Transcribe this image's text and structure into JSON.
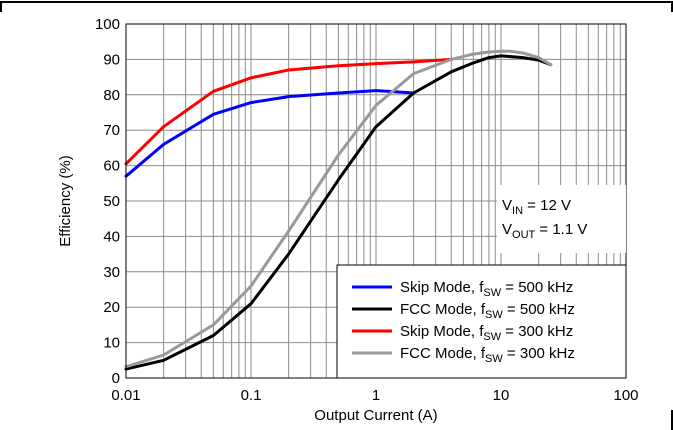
{
  "chart_data": {
    "type": "line",
    "xlabel": "Output Current (A)",
    "ylabel": "Efficiency (%)",
    "xscale": "log",
    "xlim": [
      0.01,
      100
    ],
    "ylim": [
      0,
      100
    ],
    "grid": true,
    "legend_position": "bottom-right",
    "xticks": [
      {
        "value": 0.01,
        "label": "0.01"
      },
      {
        "value": 0.1,
        "label": "0.1"
      },
      {
        "value": 1,
        "label": "1"
      },
      {
        "value": 10,
        "label": "10"
      },
      {
        "value": 100,
        "label": "100"
      }
    ],
    "yticks": [
      0,
      10,
      20,
      30,
      40,
      50,
      60,
      70,
      80,
      90,
      100
    ],
    "annotation": {
      "line1": {
        "main": "V",
        "sub": "IN",
        "rest": " = 12 V"
      },
      "line2": {
        "main": "V",
        "sub": "OUT",
        "rest": " = 1.1 V"
      }
    },
    "series": [
      {
        "legend": {
          "main": "Skip Mode, f",
          "sub": "SW",
          "rest": " = 500 kHz"
        },
        "color": "#0000ff",
        "x": [
          0.01,
          0.02,
          0.05,
          0.1,
          0.2,
          0.5,
          1,
          2
        ],
        "y": [
          57,
          66,
          74.5,
          77.8,
          79.5,
          80.5,
          81.2,
          80.5
        ]
      },
      {
        "legend": {
          "main": "FCC Mode, f",
          "sub": "SW",
          "rest": " = 500 kHz"
        },
        "color": "#000000",
        "x": [
          0.01,
          0.02,
          0.05,
          0.1,
          0.2,
          0.5,
          1,
          2,
          4,
          6,
          8,
          10,
          15,
          20,
          25
        ],
        "y": [
          2.5,
          5,
          12,
          21,
          35,
          56,
          71,
          80.5,
          86.5,
          89,
          90.5,
          91,
          90.5,
          89.8,
          88.5
        ]
      },
      {
        "legend": {
          "main": "Skip Mode, f",
          "sub": "SW",
          "rest": " = 300 kHz"
        },
        "color": "#ff0000",
        "x": [
          0.01,
          0.02,
          0.05,
          0.1,
          0.2,
          0.5,
          1,
          2,
          4
        ],
        "y": [
          60.5,
          71,
          81,
          84.8,
          87,
          88.2,
          88.8,
          89.3,
          90
        ]
      },
      {
        "legend": {
          "main": "FCC Mode, f",
          "sub": "SW",
          "rest": " = 300 kHz"
        },
        "color": "#999999",
        "x": [
          0.01,
          0.02,
          0.05,
          0.1,
          0.2,
          0.5,
          1,
          2,
          4,
          6,
          8,
          10,
          12,
          15,
          20,
          25
        ],
        "y": [
          3.2,
          6.5,
          15,
          26,
          41.5,
          63,
          77,
          86,
          90,
          91.5,
          92.1,
          92.3,
          92.3,
          91.8,
          90.5,
          88.5
        ]
      }
    ]
  }
}
